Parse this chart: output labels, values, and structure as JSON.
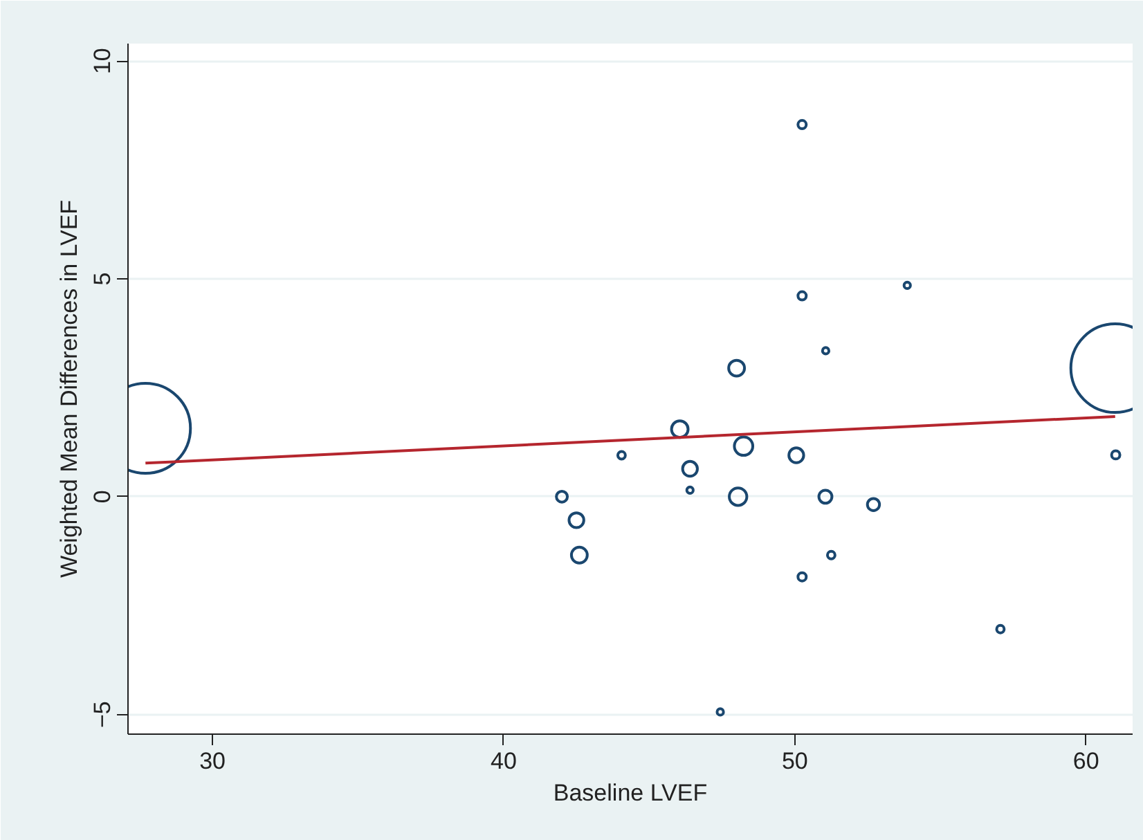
{
  "chart_data": {
    "type": "bubble",
    "xlabel": "Baseline LVEF",
    "ylabel": "Weighted Mean Differences in LVEF",
    "xlim": [
      27.1,
      61.6
    ],
    "xticks": [
      30,
      40,
      50,
      60
    ],
    "ylim": [
      -5.45,
      10.4
    ],
    "yticks": [
      -5,
      0,
      5,
      10
    ],
    "grid": "y",
    "series": [
      {
        "color": "#1a476f",
        "x": [
          27.7,
          61.0,
          48.0,
          46.05,
          48.24,
          50.05,
          44.05,
          46.4,
          46.4,
          42.0,
          48.05,
          51.05,
          52.7,
          42.5,
          42.6,
          51.25,
          50.25,
          51.06,
          50.25,
          50.25,
          53.86,
          57.06,
          47.44,
          61.02
        ],
        "values": [
          1.57,
          2.95,
          2.95,
          1.55,
          1.16,
          0.95,
          0.95,
          0.64,
          0.15,
          0.0,
          0.0,
          0.0,
          -0.18,
          -0.54,
          -1.34,
          -1.34,
          -1.84,
          3.35,
          8.54,
          4.61,
          4.85,
          -3.04,
          -4.94,
          0.96
        ],
        "sizes": [
          1,
          0.97,
          0.031,
          0.034,
          0.042,
          0.027,
          0.007,
          0.027,
          0.005,
          0.015,
          0.038,
          0.021,
          0.018,
          0.027,
          0.031,
          0.007,
          0.0085,
          0.005,
          0.0085,
          0.0085,
          0.005,
          0.007,
          0.005,
          0.0085
        ]
      },
      {
        "type": "line",
        "color": "#b5262e",
        "x": [
          27.7,
          61.0
        ],
        "values": [
          0.77,
          1.84
        ]
      }
    ]
  }
}
